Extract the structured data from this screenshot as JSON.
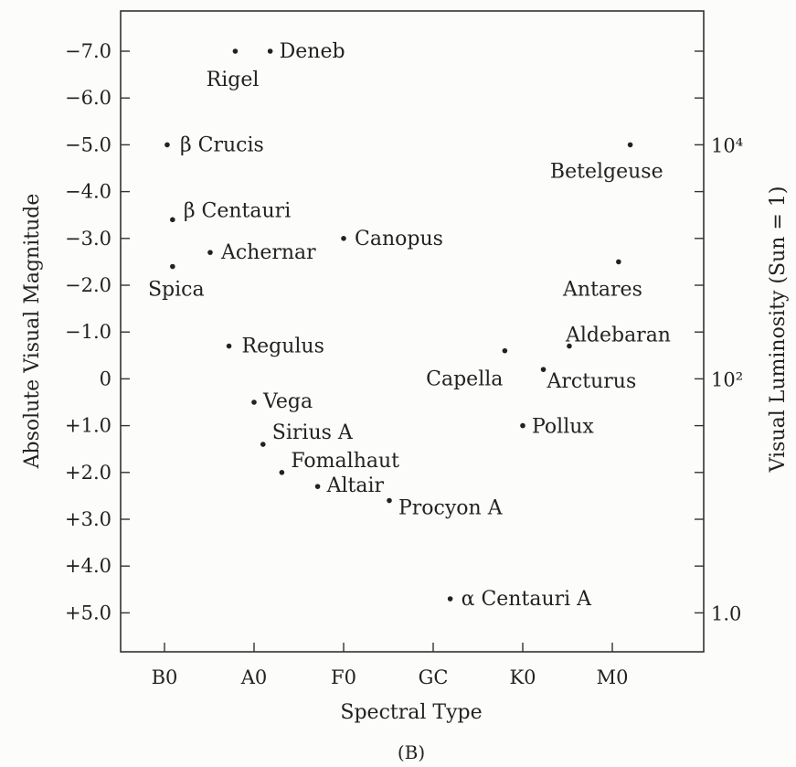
{
  "chart_data": {
    "type": "scatter",
    "title": "",
    "panel_label": "(B)",
    "xlabel": "Spectral Type",
    "ylabel": "Absolute Visual Magnitude",
    "ylabel_right": "Visual Luminosity (Sun = 1)",
    "x_categories": [
      "B0",
      "A0",
      "F0",
      "GC",
      "K0",
      "M0"
    ],
    "y_ticks": [
      {
        "value": -7.0,
        "label": "−7.0"
      },
      {
        "value": -6.0,
        "label": "−6.0"
      },
      {
        "value": -5.0,
        "label": "−5.0"
      },
      {
        "value": -4.0,
        "label": "−4.0"
      },
      {
        "value": -3.0,
        "label": "−3.0"
      },
      {
        "value": -2.0,
        "label": "−2.0"
      },
      {
        "value": -1.0,
        "label": "−1.0"
      },
      {
        "value": 0,
        "label": "0"
      },
      {
        "value": 1.0,
        "label": "+1.0"
      },
      {
        "value": 2.0,
        "label": "+2.0"
      },
      {
        "value": 3.0,
        "label": "+3.0"
      },
      {
        "value": 4.0,
        "label": "+4.0"
      },
      {
        "value": 5.0,
        "label": "+5.0"
      }
    ],
    "y_right_ticks": [
      {
        "magnitude": -5.0,
        "label": "10⁴"
      },
      {
        "magnitude": 0.0,
        "label": "10²"
      },
      {
        "magnitude": 5.0,
        "label": "1.0"
      }
    ],
    "ylim": [
      -8.0,
      6.0
    ],
    "xlim": [
      -0.5,
      6.1
    ],
    "y_inverted": true,
    "grid": false,
    "points": [
      {
        "name": "Deneb",
        "spectral_index": 1.18,
        "magnitude": -7.0
      },
      {
        "name": "Rigel",
        "spectral_index": 0.79,
        "magnitude": -7.0
      },
      {
        "name": "β Crucis",
        "spectral_index": 0.03,
        "magnitude": -5.0
      },
      {
        "name": "β Centauri",
        "spectral_index": 0.09,
        "magnitude": -3.4
      },
      {
        "name": "Achernar",
        "spectral_index": 0.51,
        "magnitude": -2.7
      },
      {
        "name": "Canopus",
        "spectral_index": 2.0,
        "magnitude": -3.0
      },
      {
        "name": "Spica",
        "spectral_index": 0.09,
        "magnitude": -2.4
      },
      {
        "name": "Regulus",
        "spectral_index": 0.72,
        "magnitude": -0.7
      },
      {
        "name": "Vega",
        "spectral_index": 1.0,
        "magnitude": 0.5
      },
      {
        "name": "Sirius A",
        "spectral_index": 1.1,
        "magnitude": 1.4
      },
      {
        "name": "Fomalhaut",
        "spectral_index": 1.31,
        "magnitude": 2.0
      },
      {
        "name": "Altair",
        "spectral_index": 1.71,
        "magnitude": 2.3
      },
      {
        "name": "Procyon A",
        "spectral_index": 2.51,
        "magnitude": 2.6
      },
      {
        "name": "α Centauri A",
        "spectral_index": 3.19,
        "magnitude": 4.7
      },
      {
        "name": "Betelgeuse",
        "spectral_index": 5.2,
        "magnitude": -5.0
      },
      {
        "name": "Antares",
        "spectral_index": 5.07,
        "magnitude": -2.5
      },
      {
        "name": "Aldebaran",
        "spectral_index": 4.52,
        "magnitude": -0.7
      },
      {
        "name": "Capella",
        "spectral_index": 3.8,
        "magnitude": -0.6
      },
      {
        "name": "Arcturus",
        "spectral_index": 4.23,
        "magnitude": -0.2
      },
      {
        "name": "Pollux",
        "spectral_index": 4.0,
        "magnitude": 1.0
      }
    ]
  }
}
